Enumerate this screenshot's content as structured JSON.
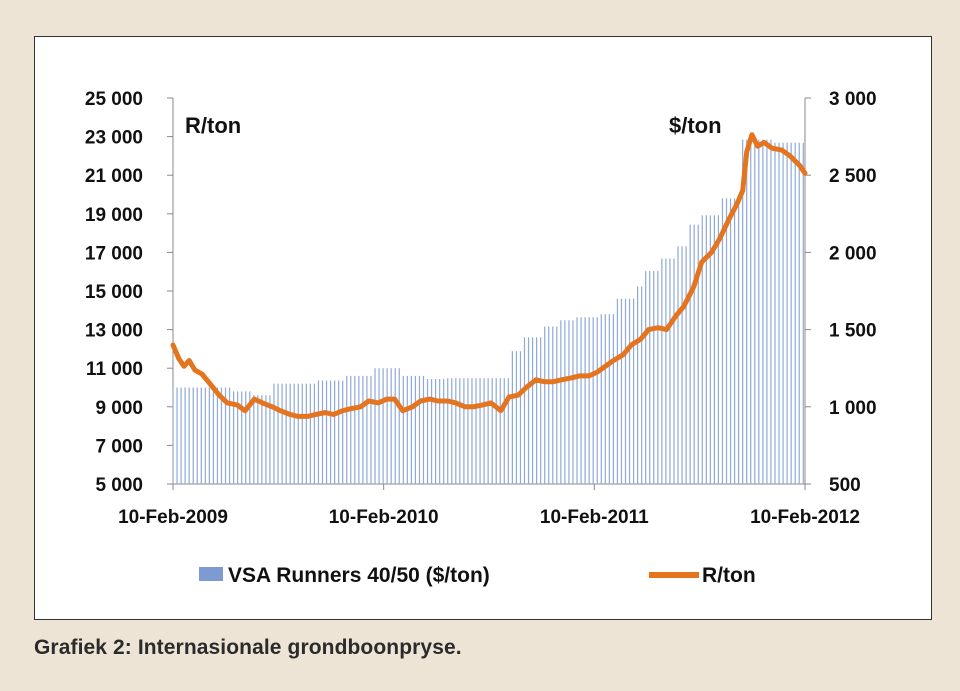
{
  "caption": "Grafiek 2: Internasionale grondboonpryse.",
  "chart_data": {
    "type": "bar+line",
    "title": "",
    "left_axis": {
      "unit_label": "R/ton",
      "ylim": [
        5000,
        25000
      ],
      "ticks": [
        "5 000",
        "7 000",
        "9 000",
        "11 000",
        "13 000",
        "15 000",
        "17 000",
        "19 000",
        "21 000",
        "23 000",
        "25 000"
      ]
    },
    "right_axis": {
      "unit_label": "$/ton",
      "ylim": [
        500,
        3000
      ],
      "ticks": [
        "500",
        "1 000",
        "1 500",
        "2 000",
        "2 500",
        "3 000"
      ]
    },
    "x_axis": {
      "ticks": [
        "10-Feb-2009",
        "10-Feb-2010",
        "10-Feb-2011",
        "10-Feb-2012"
      ],
      "range": [
        "2009-02-10",
        "2012-02-10"
      ]
    },
    "legend": {
      "position": "bottom",
      "items": [
        "VSA Runners 40/50 ($/ton)",
        "R/ton"
      ]
    },
    "colors": {
      "bars": "#8fa9d8",
      "line": "#e5741f",
      "axis": "#888888"
    },
    "series": [
      {
        "name": "VSA Runners 40/50 ($/ton)",
        "axis": "right",
        "type": "bar",
        "step_values": [
          {
            "from": "2009-02-10",
            "value": 1125
          },
          {
            "from": "2009-05-20",
            "value": 1100
          },
          {
            "from": "2009-06-25",
            "value": 1075
          },
          {
            "from": "2009-08-01",
            "value": 1150
          },
          {
            "from": "2009-10-20",
            "value": 1170
          },
          {
            "from": "2009-12-05",
            "value": 1200
          },
          {
            "from": "2010-01-20",
            "value": 1250
          },
          {
            "from": "2010-03-10",
            "value": 1200
          },
          {
            "from": "2010-04-25",
            "value": 1180
          },
          {
            "from": "2010-06-01",
            "value": 1185
          },
          {
            "from": "2010-09-15",
            "value": 1360
          },
          {
            "from": "2010-10-10",
            "value": 1450
          },
          {
            "from": "2010-11-10",
            "value": 1520
          },
          {
            "from": "2010-12-10",
            "value": 1560
          },
          {
            "from": "2011-01-10",
            "value": 1580
          },
          {
            "from": "2011-02-20",
            "value": 1600
          },
          {
            "from": "2011-03-20",
            "value": 1700
          },
          {
            "from": "2011-04-20",
            "value": 1780
          },
          {
            "from": "2011-05-05",
            "value": 1880
          },
          {
            "from": "2011-06-05",
            "value": 1960
          },
          {
            "from": "2011-07-05",
            "value": 2040
          },
          {
            "from": "2011-07-25",
            "value": 2180
          },
          {
            "from": "2011-08-15",
            "value": 2240
          },
          {
            "from": "2011-09-15",
            "value": 2350
          },
          {
            "from": "2011-10-25",
            "value": 2730
          },
          {
            "from": "2011-12-20",
            "value": 2710
          },
          {
            "from": "2012-02-10",
            "value": 2700
          }
        ]
      },
      {
        "name": "R/ton",
        "axis": "left",
        "type": "line",
        "x": [
          "2009-02-10",
          "2009-02-20",
          "2009-03-01",
          "2009-03-10",
          "2009-03-20",
          "2009-04-01",
          "2009-04-15",
          "2009-05-01",
          "2009-05-15",
          "2009-06-01",
          "2009-06-15",
          "2009-07-01",
          "2009-07-15",
          "2009-08-01",
          "2009-08-15",
          "2009-09-01",
          "2009-09-15",
          "2009-10-01",
          "2009-10-15",
          "2009-11-01",
          "2009-11-15",
          "2009-12-01",
          "2009-12-15",
          "2010-01-01",
          "2010-01-15",
          "2010-02-01",
          "2010-02-15",
          "2010-03-01",
          "2010-03-15",
          "2010-04-01",
          "2010-04-15",
          "2010-05-01",
          "2010-05-15",
          "2010-06-01",
          "2010-06-15",
          "2010-07-01",
          "2010-07-15",
          "2010-08-01",
          "2010-08-15",
          "2010-09-01",
          "2010-09-15",
          "2010-10-01",
          "2010-10-15",
          "2010-11-01",
          "2010-11-15",
          "2010-12-01",
          "2010-12-15",
          "2011-01-01",
          "2011-01-15",
          "2011-02-01",
          "2011-02-15",
          "2011-03-01",
          "2011-03-15",
          "2011-04-01",
          "2011-04-15",
          "2011-05-01",
          "2011-05-15",
          "2011-06-01",
          "2011-06-15",
          "2011-07-01",
          "2011-07-15",
          "2011-08-01",
          "2011-08-15",
          "2011-09-01",
          "2011-09-15",
          "2011-10-01",
          "2011-10-15",
          "2011-10-25",
          "2011-11-01",
          "2011-11-10",
          "2011-11-20",
          "2011-12-01",
          "2011-12-15",
          "2012-01-01",
          "2012-01-15",
          "2012-02-01",
          "2012-02-10"
        ],
        "values": [
          12200,
          11500,
          11100,
          11400,
          10900,
          10700,
          10200,
          9600,
          9200,
          9100,
          8800,
          9400,
          9200,
          9000,
          8800,
          8600,
          8500,
          8500,
          8600,
          8700,
          8600,
          8800,
          8900,
          9000,
          9300,
          9200,
          9400,
          9400,
          8800,
          9000,
          9300,
          9400,
          9300,
          9300,
          9200,
          9000,
          9000,
          9100,
          9200,
          8800,
          9500,
          9600,
          10000,
          10400,
          10300,
          10300,
          10400,
          10500,
          10600,
          10600,
          10800,
          11100,
          11400,
          11700,
          12200,
          12500,
          13000,
          13100,
          13000,
          13700,
          14200,
          15200,
          16500,
          17000,
          17700,
          18700,
          19500,
          20200,
          22200,
          23100,
          22500,
          22700,
          22400,
          22300,
          22000,
          21500,
          21100
        ]
      }
    ]
  }
}
